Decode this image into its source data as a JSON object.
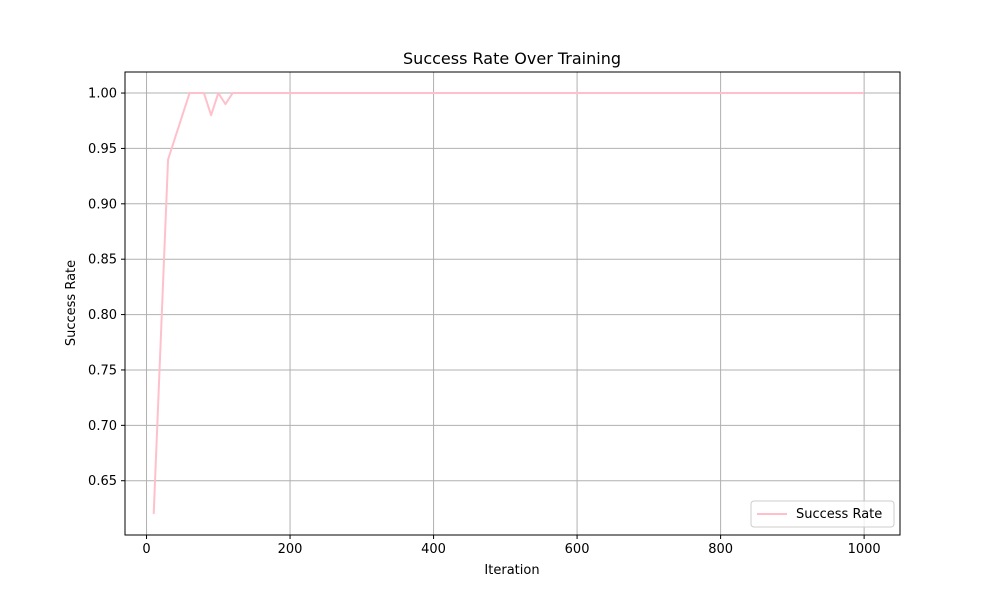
{
  "chart_data": {
    "type": "line",
    "title": "Success Rate Over Training",
    "xlabel": "Iteration",
    "ylabel": "Success Rate",
    "xlim": [
      -30,
      1050
    ],
    "ylim": [
      0.601,
      1.019
    ],
    "xticks": [
      0,
      200,
      400,
      600,
      800,
      1000
    ],
    "yticks": [
      0.65,
      0.7,
      0.75,
      0.8,
      0.85,
      0.9,
      0.95,
      1.0
    ],
    "grid": true,
    "legend_position": "lower-right",
    "series": [
      {
        "name": "Success Rate",
        "color": "#ffc0cb",
        "x": [
          10,
          20,
          30,
          40,
          50,
          60,
          70,
          80,
          90,
          100,
          110,
          120,
          130,
          140,
          150,
          160,
          170,
          180,
          190,
          200,
          300,
          400,
          500,
          600,
          700,
          800,
          900,
          1000
        ],
        "y": [
          0.62,
          0.78,
          0.94,
          0.96,
          0.98,
          1.0,
          1.0,
          1.0,
          0.98,
          1.0,
          0.99,
          1.0,
          1.0,
          1.0,
          1.0,
          1.0,
          1.0,
          1.0,
          1.0,
          1.0,
          1.0,
          1.0,
          1.0,
          1.0,
          1.0,
          1.0,
          1.0,
          1.0
        ]
      }
    ]
  }
}
